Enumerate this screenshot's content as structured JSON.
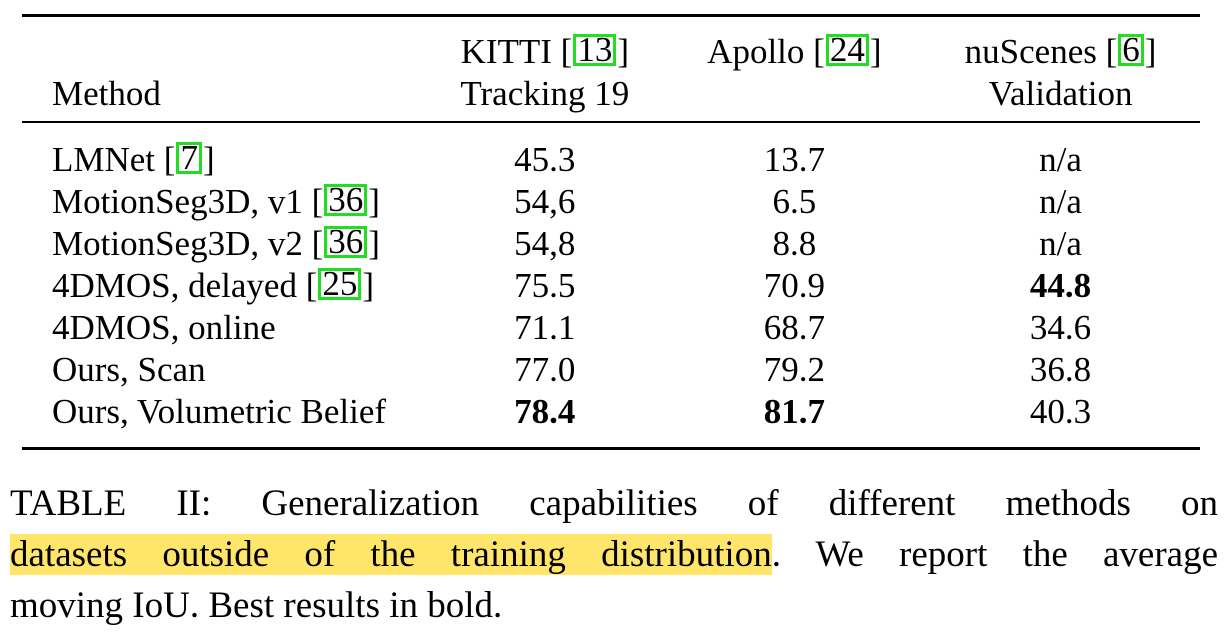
{
  "table": {
    "columns": {
      "method": "Method",
      "kitti": {
        "line1_prefix": "KITTI [",
        "ref": "13",
        "line1_suffix": "]",
        "line2": "Tracking 19"
      },
      "apollo": {
        "line1_prefix": "Apollo [",
        "ref": "24",
        "line1_suffix": "]",
        "line2": ""
      },
      "nuscenes": {
        "line1_prefix": "nuScenes [",
        "ref": "6",
        "line1_suffix": "]",
        "line2": "Validation"
      }
    },
    "rows": [
      {
        "method_prefix": "LMNet [",
        "ref": "7",
        "method_suffix": "]",
        "kitti": "45.3",
        "apollo": "13.7",
        "nuscenes": "n/a",
        "bold": []
      },
      {
        "method_prefix": "MotionSeg3D, v1 [",
        "ref": "36",
        "method_suffix": "]",
        "kitti": "54,6",
        "apollo": "6.5",
        "nuscenes": "n/a",
        "bold": []
      },
      {
        "method_prefix": "MotionSeg3D, v2 [",
        "ref": "36",
        "method_suffix": "]",
        "kitti": "54,8",
        "apollo": "8.8",
        "nuscenes": "n/a",
        "bold": []
      },
      {
        "method_prefix": "4DMOS, delayed [",
        "ref": "25",
        "method_suffix": "]",
        "kitti": "75.5",
        "apollo": "70.9",
        "nuscenes": "44.8",
        "bold": [
          "nuscenes"
        ]
      },
      {
        "method_prefix": "4DMOS, online",
        "ref": "",
        "method_suffix": "",
        "kitti": "71.1",
        "apollo": "68.7",
        "nuscenes": "34.6",
        "bold": []
      },
      {
        "method_prefix": "Ours, Scan",
        "ref": "",
        "method_suffix": "",
        "kitti": "77.0",
        "apollo": "79.2",
        "nuscenes": "36.8",
        "bold": []
      },
      {
        "method_prefix": "Ours, Volumetric Belief",
        "ref": "",
        "method_suffix": "",
        "kitti": "78.4",
        "apollo": "81.7",
        "nuscenes": "40.3",
        "bold": [
          "kitti",
          "apollo"
        ]
      }
    ]
  },
  "caption": {
    "line1": "TABLE II: Generalization capabilities of different methods on",
    "line2_highlight": "datasets outside of the training distribution",
    "line2_rest": ". We report the average",
    "line3": "moving IoU. Best results in bold."
  },
  "colors": {
    "reference_box": "#22dd22",
    "highlight": "#ffe66b"
  }
}
